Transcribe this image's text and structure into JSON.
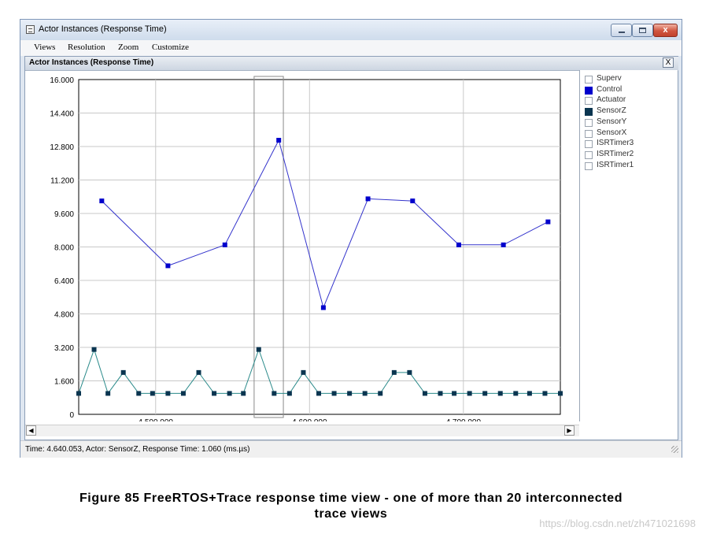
{
  "window": {
    "title": "Actor Instances (Response Time)",
    "buttons": {
      "minimize": "minimize",
      "maximize": "maximize",
      "close": "x"
    }
  },
  "menu": {
    "items": [
      "Views",
      "Resolution",
      "Zoom",
      "Customize"
    ]
  },
  "panel": {
    "title": "Actor Instances (Response Time)",
    "close_label": "X"
  },
  "legend": {
    "items": [
      {
        "label": "Superv",
        "checked": false,
        "color": "#ffffff"
      },
      {
        "label": "Control",
        "checked": true,
        "color": "#0000cc"
      },
      {
        "label": "Actuator",
        "checked": false,
        "color": "#ffffff"
      },
      {
        "label": "SensorZ",
        "checked": true,
        "color": "#0a3550"
      },
      {
        "label": "SensorY",
        "checked": false,
        "color": "#ffffff"
      },
      {
        "label": "SensorX",
        "checked": false,
        "color": "#ffffff"
      },
      {
        "label": "ISRTimer3",
        "checked": false,
        "color": "#ffffff"
      },
      {
        "label": "ISRTimer2",
        "checked": false,
        "color": "#ffffff"
      },
      {
        "label": "ISRTimer1",
        "checked": false,
        "color": "#ffffff"
      }
    ]
  },
  "chart_data": {
    "type": "line",
    "ylim": [
      0,
      16
    ],
    "xlim": [
      4450,
      4763
    ],
    "y_ticks": [
      0,
      1.6,
      3.2,
      4.8,
      6.4,
      8.0,
      9.6,
      11.2,
      12.8,
      14.4,
      16.0
    ],
    "y_tick_labels": [
      "0",
      "1.600",
      "3.200",
      "4.800",
      "6.400",
      "8.000",
      "9.600",
      "11.200",
      "12.800",
      "14.400",
      "16.000"
    ],
    "x_ticks": [
      4500,
      4600,
      4700
    ],
    "x_tick_labels": [
      "4.500.000",
      "4.600.000",
      "4.700.000"
    ],
    "grid": true,
    "selection_range": [
      4564,
      4583
    ],
    "series": [
      {
        "name": "Control",
        "color": "#0000cc",
        "line_color": "#3333cc",
        "x": [
          4465,
          4508,
          4545,
          4580,
          4609,
          4638,
          4667,
          4697,
          4726,
          4755
        ],
        "y": [
          10.2,
          7.1,
          8.1,
          13.1,
          5.1,
          10.3,
          10.2,
          8.1,
          8.1,
          9.2
        ]
      },
      {
        "name": "SensorZ",
        "color": "#0a3550",
        "line_color": "#2a8a8a",
        "x": [
          4450,
          4460,
          4469,
          4479,
          4489,
          4498,
          4508,
          4518,
          4528,
          4538,
          4548,
          4557,
          4567,
          4577,
          4587,
          4596,
          4606,
          4616,
          4626,
          4636,
          4646,
          4655,
          4665,
          4675,
          4685,
          4694,
          4704,
          4714,
          4724,
          4734,
          4743,
          4753,
          4763
        ],
        "y": [
          1.0,
          3.1,
          1.0,
          2.0,
          1.0,
          1.0,
          1.0,
          1.0,
          2.0,
          1.0,
          1.0,
          1.0,
          3.1,
          1.0,
          1.0,
          2.0,
          1.0,
          1.0,
          1.0,
          1.0,
          1.0,
          2.0,
          2.0,
          1.0,
          1.0,
          1.0,
          1.0,
          1.0,
          1.0,
          1.0,
          1.0,
          1.0,
          1.0
        ]
      }
    ]
  },
  "status": {
    "text": "Time: 4.640.053, Actor: SensorZ, Response Time: 1.060 (ms.µs)"
  },
  "scroll": {
    "left_arrow": "◀",
    "right_arrow": "▶"
  },
  "caption": {
    "line1": "Figure 85 FreeRTOS+Trace response time view - one of more than 20 interconnected",
    "line2": "trace views"
  },
  "watermark": "https://blog.csdn.net/zh471021698"
}
